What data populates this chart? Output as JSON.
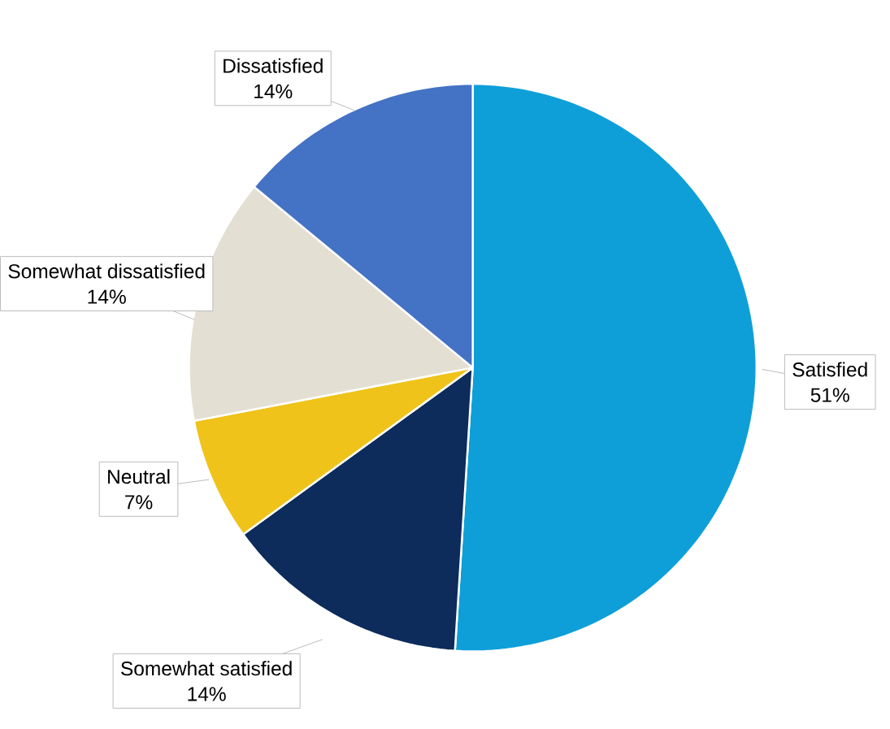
{
  "chart_data": {
    "type": "pie",
    "categories": [
      "Satisfied",
      "Somewhat satisfied",
      "Neutral",
      "Somewhat dissatisfied",
      "Dissatisfied"
    ],
    "values": [
      51,
      14,
      7,
      14,
      14
    ],
    "value_labels": [
      "51%",
      "14%",
      "7%",
      "14%",
      "14%"
    ],
    "colors": [
      "#0e9fd9",
      "#0d2b5b",
      "#efc31a",
      "#e4dfd3",
      "#4472c4"
    ]
  }
}
